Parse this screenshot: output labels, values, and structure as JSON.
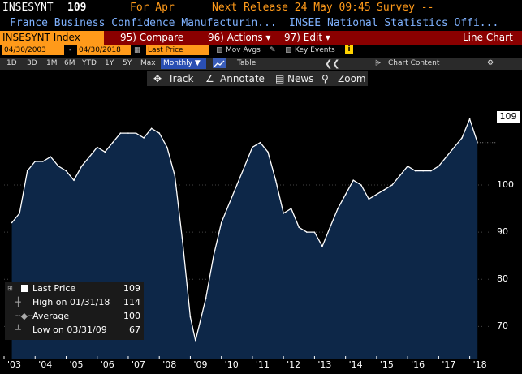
{
  "header": {
    "ticker": "INSESYNT",
    "last_value": "109",
    "period": "For Apr",
    "next_release": "Next Release 24 May 09:45",
    "survey": "Survey --",
    "security_name": "France Business Confidence Manufacturin...",
    "source": "INSEE National Statistics Offi..."
  },
  "toolbar": {
    "security": "INSESYNT Index",
    "compare_num": "95)",
    "compare_label": "Compare",
    "actions_num": "96)",
    "actions_label": "Actions ▾",
    "edit_num": "97)",
    "edit_label": "Edit ▾",
    "view": "Line Chart"
  },
  "range": {
    "start": "04/30/2003",
    "dash": "-",
    "end": "04/30/2018",
    "field": "Last Price",
    "mov_avgs": "Mov Avgs",
    "key_events": "Key Events"
  },
  "periods": [
    "1D",
    "3D",
    "1M",
    "6M",
    "YTD",
    "1Y",
    "5Y",
    "Max"
  ],
  "frequency": "Monthly ▼",
  "table_label": "Table",
  "chart_content": "Chart Content",
  "tools": {
    "track": "Track",
    "annotate": "Annotate",
    "news": "News",
    "zoom": "Zoom"
  },
  "legend": {
    "last_label": "Last Price",
    "last_value": "109",
    "high_label": "High on 01/31/18",
    "high_value": "114",
    "avg_label": "Average",
    "avg_value": "100",
    "low_label": "Low on 03/31/09",
    "low_value": "67"
  },
  "colors": {
    "accent_orange": "#ff9a1a",
    "toolbar_red": "#8a0000",
    "area_fill": "#0d2748",
    "line": "#ffffff"
  },
  "chart_data": {
    "type": "area",
    "x": [
      "2003-04",
      "2003-07",
      "2003-10",
      "2004-01",
      "2004-04",
      "2004-07",
      "2004-10",
      "2005-01",
      "2005-04",
      "2005-07",
      "2005-10",
      "2006-01",
      "2006-04",
      "2006-07",
      "2006-10",
      "2007-01",
      "2007-04",
      "2007-07",
      "2007-10",
      "2008-01",
      "2008-04",
      "2008-07",
      "2008-10",
      "2009-01",
      "2009-03",
      "2009-07",
      "2009-10",
      "2010-01",
      "2010-04",
      "2010-07",
      "2010-10",
      "2011-01",
      "2011-04",
      "2011-07",
      "2011-10",
      "2012-01",
      "2012-04",
      "2012-07",
      "2012-10",
      "2013-01",
      "2013-04",
      "2013-07",
      "2013-10",
      "2014-01",
      "2014-04",
      "2014-07",
      "2014-10",
      "2015-01",
      "2015-04",
      "2015-07",
      "2015-10",
      "2016-01",
      "2016-04",
      "2016-07",
      "2016-10",
      "2017-01",
      "2017-04",
      "2017-07",
      "2017-10",
      "2018-01",
      "2018-04"
    ],
    "values": [
      92,
      94,
      103,
      105,
      105,
      106,
      104,
      103,
      101,
      104,
      106,
      108,
      107,
      109,
      111,
      111,
      111,
      110,
      112,
      111,
      108,
      102,
      88,
      72,
      67,
      76,
      85,
      92,
      96,
      100,
      104,
      108,
      109,
      107,
      101,
      94,
      95,
      91,
      90,
      90,
      87,
      91,
      95,
      98,
      101,
      100,
      97,
      98,
      99,
      100,
      102,
      104,
      103,
      103,
      103,
      104,
      106,
      108,
      110,
      114,
      109
    ],
    "xticks": [
      "'03",
      "'04",
      "'05",
      "'06",
      "'07",
      "'08",
      "'09",
      "'10",
      "'11",
      "'12",
      "'13",
      "'14",
      "'15",
      "'16",
      "'17",
      "'18"
    ],
    "yticks": [
      "70",
      "80",
      "90",
      "100"
    ],
    "ylim": [
      63,
      121
    ]
  }
}
